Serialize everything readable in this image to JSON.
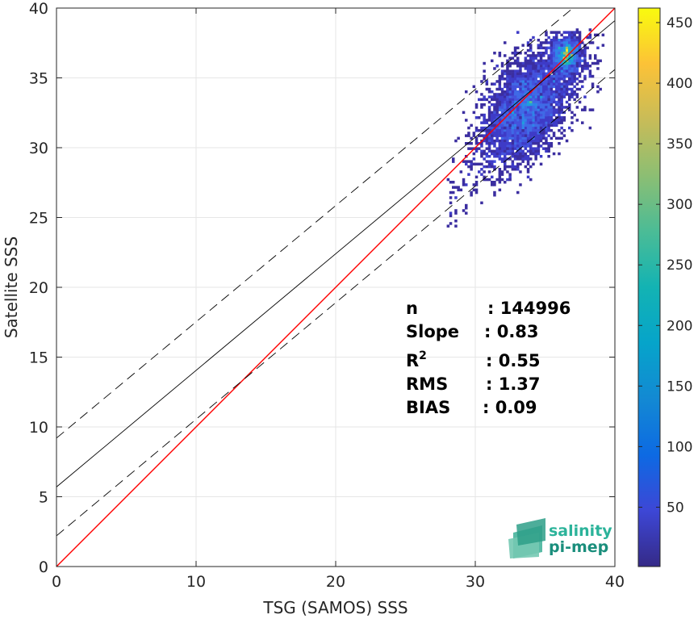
{
  "chart_data": {
    "type": "scatter",
    "subtype": "density-heatmap",
    "xlabel": "TSG (SAMOS) SSS",
    "ylabel": "Satellite SSS",
    "xlim": [
      0,
      40
    ],
    "ylim": [
      0,
      40
    ],
    "xticks": [
      "0",
      "10",
      "20",
      "30",
      "40"
    ],
    "yticks": [
      "0",
      "5",
      "10",
      "15",
      "20",
      "25",
      "30",
      "35",
      "40"
    ],
    "grid": true,
    "colorbar": {
      "range": [
        1,
        462
      ],
      "ticks": [
        "50",
        "100",
        "150",
        "200",
        "250",
        "300",
        "350",
        "400",
        "450"
      ],
      "colormap": "parula"
    },
    "density_core": {
      "x_center": 33.4,
      "y_center": 33.0,
      "x_range": [
        27,
        39.5
      ],
      "y_range": [
        24,
        38.5
      ],
      "peak": [
        36.5,
        36.6
      ]
    },
    "lines": [
      {
        "kind": "identity",
        "color": "#ff0000",
        "style": "solid",
        "points": [
          [
            0,
            0
          ],
          [
            40,
            40
          ]
        ]
      },
      {
        "kind": "fit",
        "color": "#000000",
        "style": "solid",
        "points": [
          [
            0,
            5.7
          ],
          [
            40,
            39.1
          ]
        ]
      },
      {
        "kind": "fit-upper",
        "color": "#000000",
        "style": "dashed",
        "points": [
          [
            0,
            9.2
          ],
          [
            40,
            42.5
          ]
        ]
      },
      {
        "kind": "fit-lower",
        "color": "#000000",
        "style": "dashed",
        "points": [
          [
            0,
            2.2
          ],
          [
            40,
            35.6
          ]
        ]
      }
    ],
    "stats": [
      {
        "label": "n",
        "value": ": 144996"
      },
      {
        "label": "Slope",
        "value": ": 0.83"
      },
      {
        "label": "R",
        "sup": "2",
        "value": ": 0.55"
      },
      {
        "label": "RMS",
        "value": ": 1.37"
      },
      {
        "label": "BIAS",
        "value": ": 0.09"
      }
    ]
  },
  "logo": {
    "line1": "salinity",
    "line2": "pi-mep",
    "color1": "#2bb39a",
    "color2": "#1a8e7c"
  }
}
